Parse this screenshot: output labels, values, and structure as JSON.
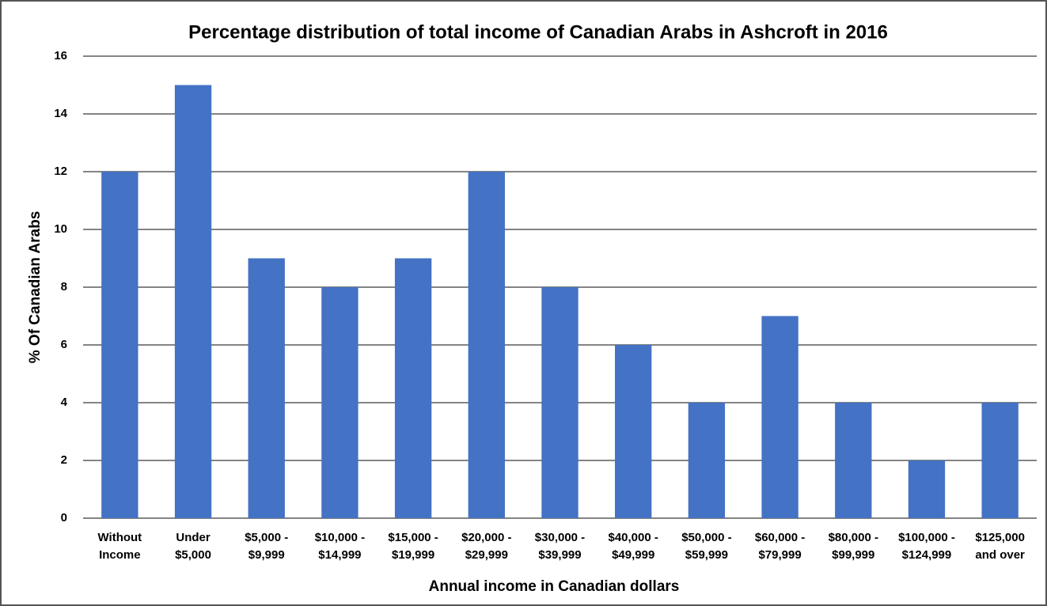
{
  "chart_data": {
    "type": "bar",
    "title": "Percentage distribution of total income of Canadian Arabs in Ashcroft in 2016",
    "xlabel": "Annual income in Canadian dollars",
    "ylabel": "% Of Canadian Arabs",
    "categories": [
      [
        "Without",
        "Income"
      ],
      [
        "Under",
        "$5,000"
      ],
      [
        "$5,000 -",
        "$9,999"
      ],
      [
        "$10,000 -",
        "$14,999"
      ],
      [
        "$15,000 -",
        "$19,999"
      ],
      [
        "$20,000 -",
        "$29,999"
      ],
      [
        "$30,000 -",
        "$39,999"
      ],
      [
        "$40,000 -",
        "$49,999"
      ],
      [
        "$50,000 -",
        "$59,999"
      ],
      [
        "$60,000 -",
        "$79,999"
      ],
      [
        "$80,000 -",
        "$99,999"
      ],
      [
        "$100,000 -",
        "$124,999"
      ],
      [
        "$125,000",
        "and over"
      ]
    ],
    "values": [
      12,
      15,
      9,
      8,
      9,
      12,
      8,
      6,
      4,
      7,
      4,
      2,
      4
    ],
    "color": "#4472c4",
    "ylim": [
      0,
      16
    ],
    "yticks": [
      0,
      2,
      4,
      6,
      8,
      10,
      12,
      14,
      16
    ],
    "grid": true
  }
}
